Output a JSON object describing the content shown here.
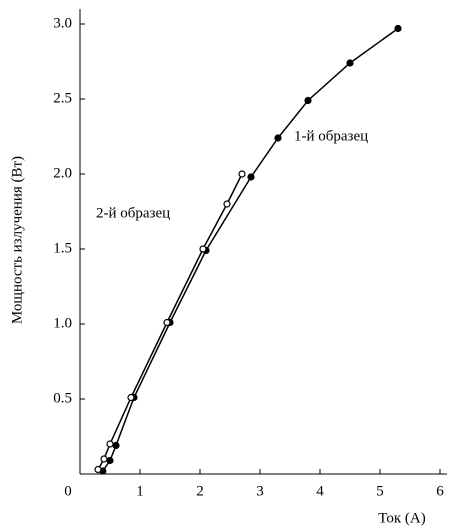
{
  "chart_data": {
    "type": "line",
    "xlabel": "Ток (A)",
    "ylabel": "Мощность излучения (Вт)",
    "annotations": [
      "1-й образец",
      "2-й образец"
    ],
    "series": [
      {
        "name": "1-й образец",
        "color": "#000000",
        "marker": "filled",
        "x": [
          0.38,
          0.5,
          0.6,
          0.9,
          1.5,
          2.1,
          2.85,
          3.3,
          3.8,
          4.5,
          5.3
        ],
        "values": [
          0.02,
          0.09,
          0.19,
          0.51,
          1.01,
          1.49,
          1.98,
          2.24,
          2.49,
          2.74,
          2.97
        ]
      },
      {
        "name": "2-й образец",
        "color": "#000000",
        "marker": "open",
        "x": [
          0.3,
          0.4,
          0.5,
          0.85,
          1.45,
          2.05,
          2.45,
          2.7
        ],
        "values": [
          0.03,
          0.1,
          0.2,
          0.51,
          1.01,
          1.5,
          1.8,
          2.0
        ]
      }
    ],
    "xlim": [
      0,
      6
    ],
    "xticks": [
      0,
      1,
      2,
      3,
      4,
      5,
      6
    ],
    "ylim": [
      0,
      3.1
    ],
    "yticks": [
      0.5,
      {
        "value": 1,
        "label": "1.0"
      },
      1.5,
      {
        "value": 2,
        "label": "2.0"
      },
      2.5,
      {
        "value": 3,
        "label": "3.0"
      }
    ],
    "grid": false
  }
}
